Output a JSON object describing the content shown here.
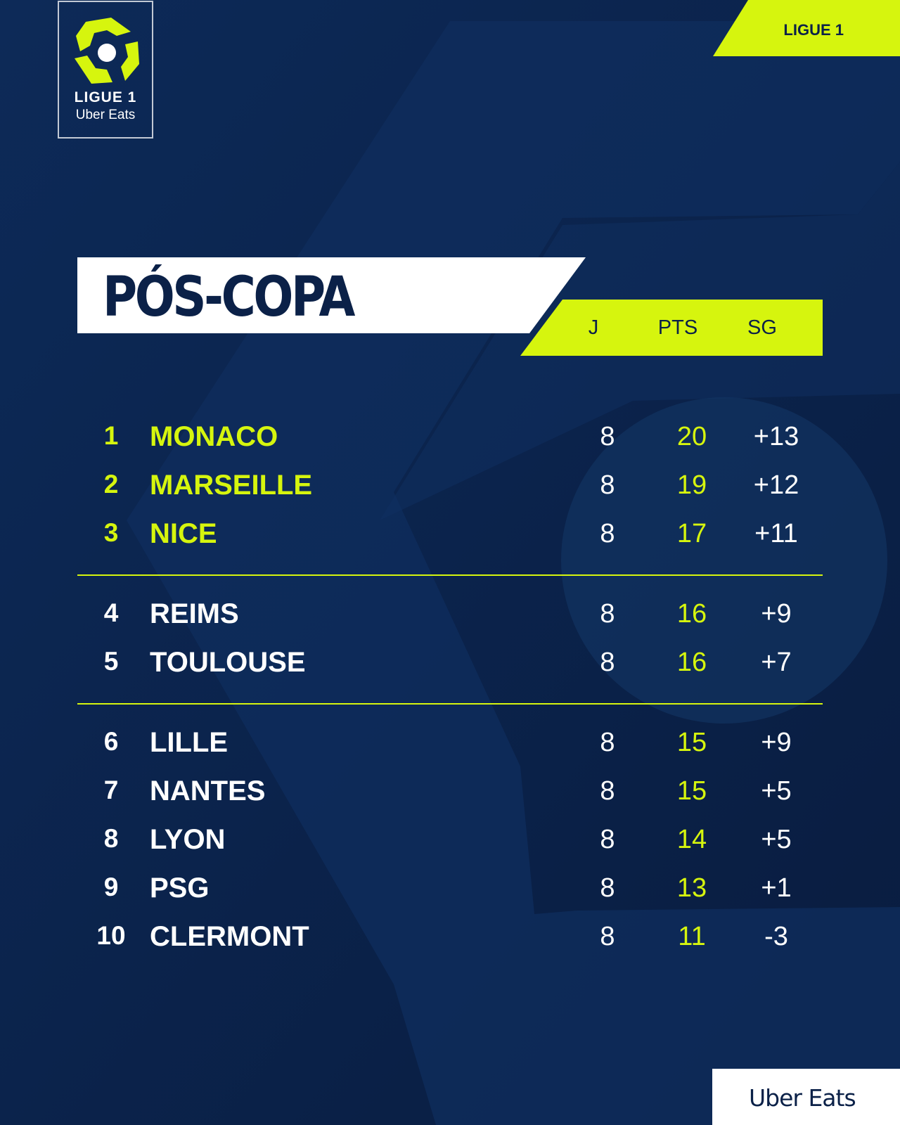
{
  "logo": {
    "line1": "LIGUE 1",
    "line2": "Uber Eats"
  },
  "tag": {
    "label": "LIGUE 1"
  },
  "title": "PÓS-COPA",
  "columns": {
    "j": "J",
    "pts": "PTS",
    "sg": "SG"
  },
  "standings": [
    {
      "pos": "1",
      "team": "MONACO",
      "j": "8",
      "pts": "20",
      "sg": "+13"
    },
    {
      "pos": "2",
      "team": "MARSEILLE",
      "j": "8",
      "pts": "19",
      "sg": "+12"
    },
    {
      "pos": "3",
      "team": "NICE",
      "j": "8",
      "pts": "17",
      "sg": "+11"
    },
    {
      "pos": "4",
      "team": "REIMS",
      "j": "8",
      "pts": "16",
      "sg": "+9"
    },
    {
      "pos": "5",
      "team": "TOULOUSE",
      "j": "8",
      "pts": "16",
      "sg": "+7"
    },
    {
      "pos": "6",
      "team": "LILLE",
      "j": "8",
      "pts": "15",
      "sg": "+9"
    },
    {
      "pos": "7",
      "team": "NANTES",
      "j": "8",
      "pts": "15",
      "sg": "+5"
    },
    {
      "pos": "8",
      "team": "LYON",
      "j": "8",
      "pts": "14",
      "sg": "+5"
    },
    {
      "pos": "9",
      "team": "PSG",
      "j": "8",
      "pts": "13",
      "sg": "+1"
    },
    {
      "pos": "10",
      "team": "CLERMONT",
      "j": "8",
      "pts": "11",
      "sg": "-3"
    }
  ],
  "footer_brand": "Uber Eats",
  "colors": {
    "accent": "#d6f50e",
    "background": "#0b2148",
    "white": "#ffffff"
  }
}
